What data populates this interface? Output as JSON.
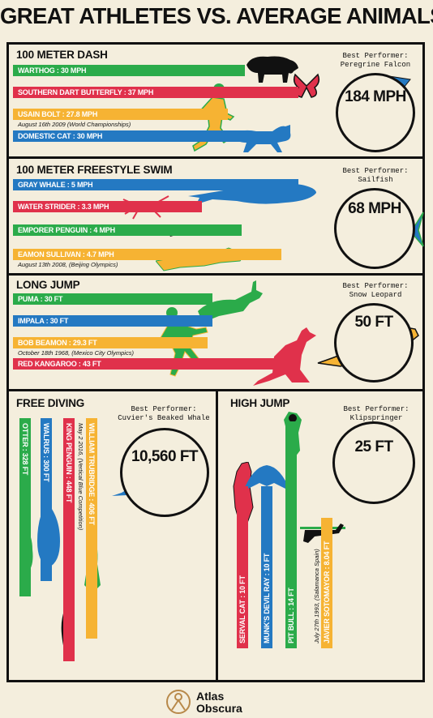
{
  "title": "GREAT ATHLETES VS. AVERAGE ANIMALS",
  "colors": {
    "green": "#2bab4a",
    "red": "#e0314b",
    "yellow": "#f6b333",
    "blue": "#2479c2",
    "ink": "#111111",
    "paper": "#f4eedd"
  },
  "chart_data": [
    {
      "type": "bar",
      "title": "100 METER DASH",
      "best_performer_label": "Best Performer:",
      "best_performer_name": "Peregrine Falcon",
      "best_value": "184 MPH",
      "bars": [
        {
          "label": "WARTHOG : 30 MPH",
          "value": 30,
          "unit": "MPH",
          "color": "green"
        },
        {
          "label": "SOUTHERN DART BUTTERFLY : 37 MPH",
          "value": 37,
          "unit": "MPH",
          "color": "red"
        },
        {
          "label": "USAIN BOLT : 27.8 MPH",
          "value": 27.8,
          "unit": "MPH",
          "color": "yellow",
          "note": "August 16th 2009 (World Championships)"
        },
        {
          "label": "DOMESTIC CAT : 30 MPH",
          "value": 30,
          "unit": "MPH",
          "color": "blue"
        }
      ]
    },
    {
      "type": "bar",
      "title": "100 METER FREESTYLE SWIM",
      "best_performer_label": "Best Performer:",
      "best_performer_name": "Sailfish",
      "best_value": "68 MPH",
      "bars": [
        {
          "label": "GRAY WHALE : 5 MPH",
          "value": 5,
          "unit": "MPH",
          "color": "blue"
        },
        {
          "label": "WATER STRIDER : 3.3 MPH",
          "value": 3.3,
          "unit": "MPH",
          "color": "red"
        },
        {
          "label": "EMPORER PENGUIN : 4 MPH",
          "value": 4,
          "unit": "MPH",
          "color": "green"
        },
        {
          "label": "EAMON SULLIVAN : 4.7 MPH",
          "value": 4.7,
          "unit": "MPH",
          "color": "yellow",
          "note": "August 13th 2008, (Beijing Olympics)"
        }
      ]
    },
    {
      "type": "bar",
      "title": "LONG JUMP",
      "best_performer_label": "Best Performer:",
      "best_performer_name": "Snow Leopard",
      "best_value": "50 FT",
      "bars": [
        {
          "label": "PUMA : 30 FT",
          "value": 30,
          "unit": "FT",
          "color": "green"
        },
        {
          "label": "IMPALA : 30 FT",
          "value": 30,
          "unit": "FT",
          "color": "blue"
        },
        {
          "label": "BOB BEAMON : 29.3 FT",
          "value": 29.3,
          "unit": "FT",
          "color": "yellow",
          "note": "October 18th 1968, (Mexico City Olympics)"
        },
        {
          "label": "RED KANGAROO : 43 FT",
          "value": 43,
          "unit": "FT",
          "color": "red"
        }
      ]
    },
    {
      "type": "bar",
      "orientation": "vertical-down",
      "title": "FREE DIVING",
      "best_performer_label": "Best Performer:",
      "best_performer_name": "Cuvier's Beaked Whale",
      "best_value": "10,560 FT",
      "bars": [
        {
          "label": "OTTER : 328 FT",
          "value": 328,
          "unit": "FT",
          "color": "green"
        },
        {
          "label": "WALRUS : 300 FT",
          "value": 300,
          "unit": "FT",
          "color": "blue"
        },
        {
          "label": "KING PENGUIN : 448 FT",
          "value": 448,
          "unit": "FT",
          "color": "red"
        },
        {
          "label": "WILLIAM TRUBRIDGE : 406 FT",
          "value": 406,
          "unit": "FT",
          "color": "yellow",
          "note": "May 2 2016, (Vertical Blue Competition)"
        }
      ]
    },
    {
      "type": "bar",
      "orientation": "vertical-up",
      "title": "HIGH JUMP",
      "best_performer_label": "Best Performer:",
      "best_performer_name": "Klipspringer",
      "best_value": "25 FT",
      "bars": [
        {
          "label": "SERVAL CAT : 10 FT",
          "value": 10,
          "unit": "FT",
          "color": "red"
        },
        {
          "label": "MUNK'S DEVIL RAY : 10 FT",
          "value": 10,
          "unit": "FT",
          "color": "blue"
        },
        {
          "label": "PIT BULL : 14 FT",
          "value": 14,
          "unit": "FT",
          "color": "green"
        },
        {
          "label": "JAVIER SOTOMAYOR : 8.04 FT",
          "value": 8.04,
          "unit": "FT",
          "color": "yellow",
          "note": "July 27th 1993, (Salamanca Spain)"
        }
      ]
    }
  ],
  "footer": {
    "brand_line1": "Atlas",
    "brand_line2": "Obscura"
  }
}
